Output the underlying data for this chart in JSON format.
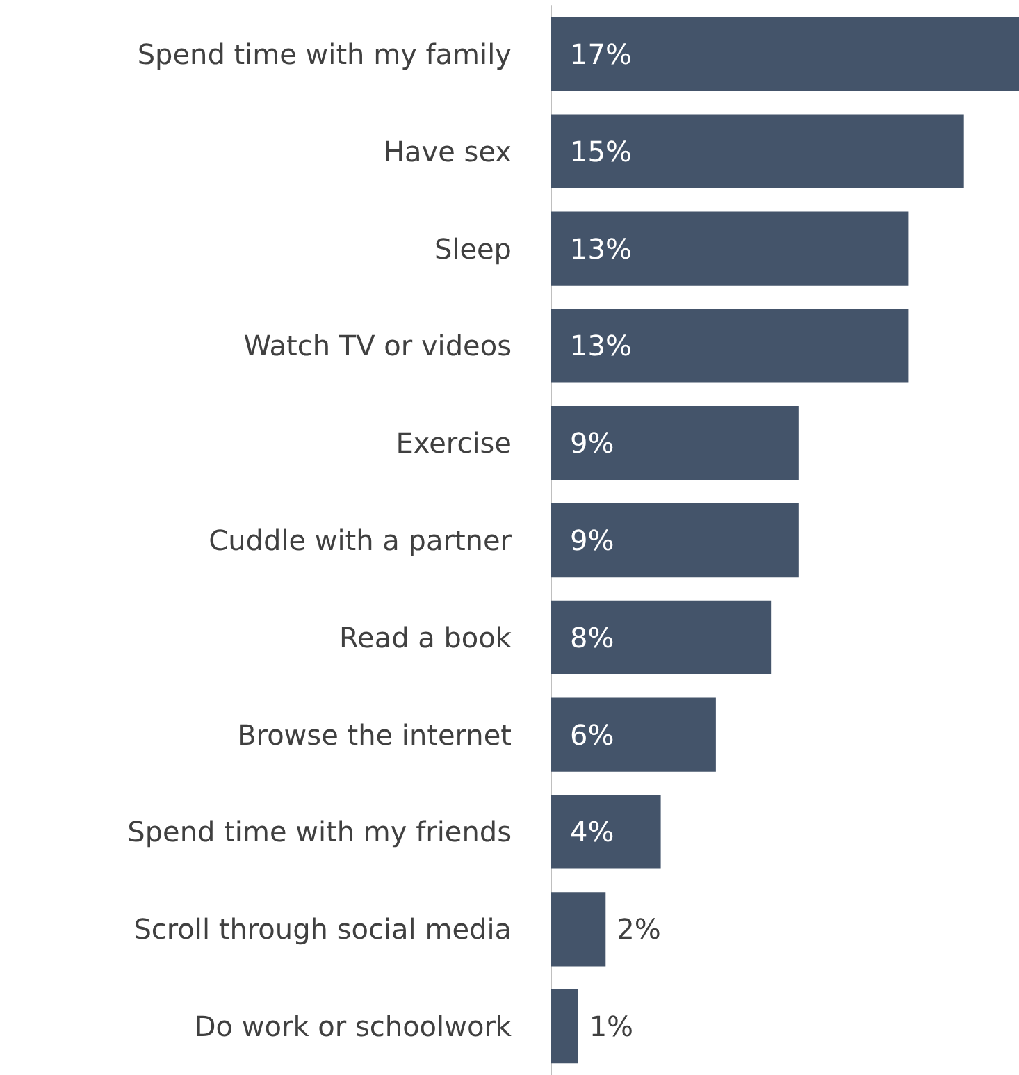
{
  "chart_data": {
    "type": "bar",
    "orientation": "horizontal",
    "categories": [
      "Spend time with my family",
      "Have sex",
      "Sleep",
      "Watch TV or videos",
      "Exercise",
      "Cuddle with a partner",
      "Read a book",
      "Browse the internet",
      "Spend time with my friends",
      "Scroll through social media",
      "Do work or schoolwork"
    ],
    "values": [
      17,
      15,
      13,
      13,
      9,
      9,
      8,
      6,
      4,
      2,
      1
    ],
    "value_labels": [
      "17%",
      "15%",
      "13%",
      "13%",
      "9%",
      "9%",
      "8%",
      "6%",
      "4%",
      "2%",
      "1%"
    ],
    "color": "#44546a"
  }
}
